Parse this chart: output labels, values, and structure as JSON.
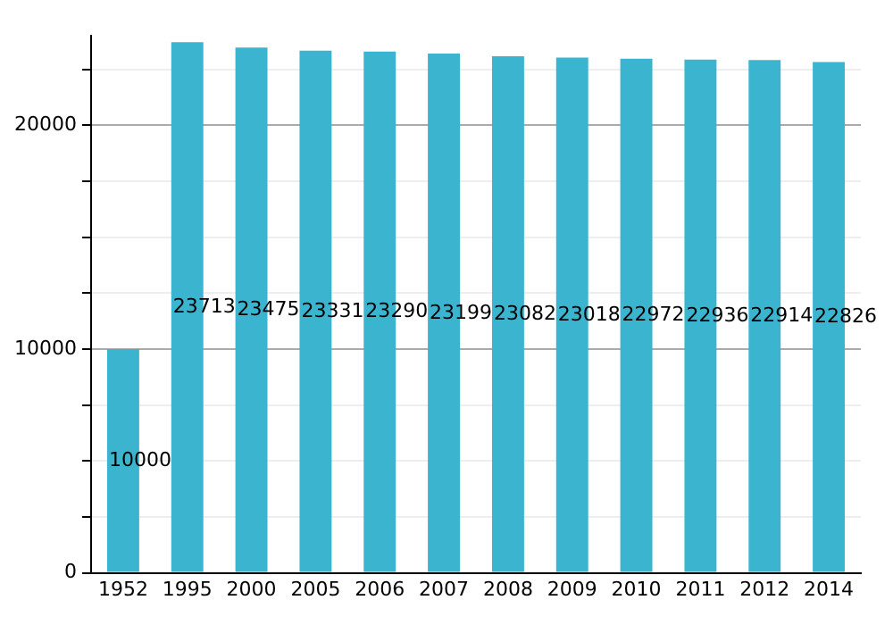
{
  "chart_data": {
    "type": "bar",
    "categories": [
      "1952",
      "1995",
      "2000",
      "2005",
      "2006",
      "2007",
      "2008",
      "2009",
      "2010",
      "2011",
      "2012",
      "2014"
    ],
    "values": [
      10000,
      23713,
      23475,
      23331,
      23290,
      23199,
      23082,
      23018,
      22972,
      22936,
      22914,
      22826
    ],
    "color": "#3ab4cf",
    "ylim": [
      0,
      24000
    ],
    "yticks": [
      0,
      {
        "value": 2500,
        "label": null
      },
      {
        "value": 5000,
        "label": null
      },
      {
        "value": 7500,
        "label": null
      },
      10000,
      {
        "value": 12500,
        "label": null
      },
      {
        "value": 15000,
        "label": null
      },
      {
        "value": 17500,
        "label": null
      },
      20000,
      {
        "value": 22500,
        "label": null
      }
    ],
    "grid": "y",
    "legend": false,
    "data_labels": true
  }
}
